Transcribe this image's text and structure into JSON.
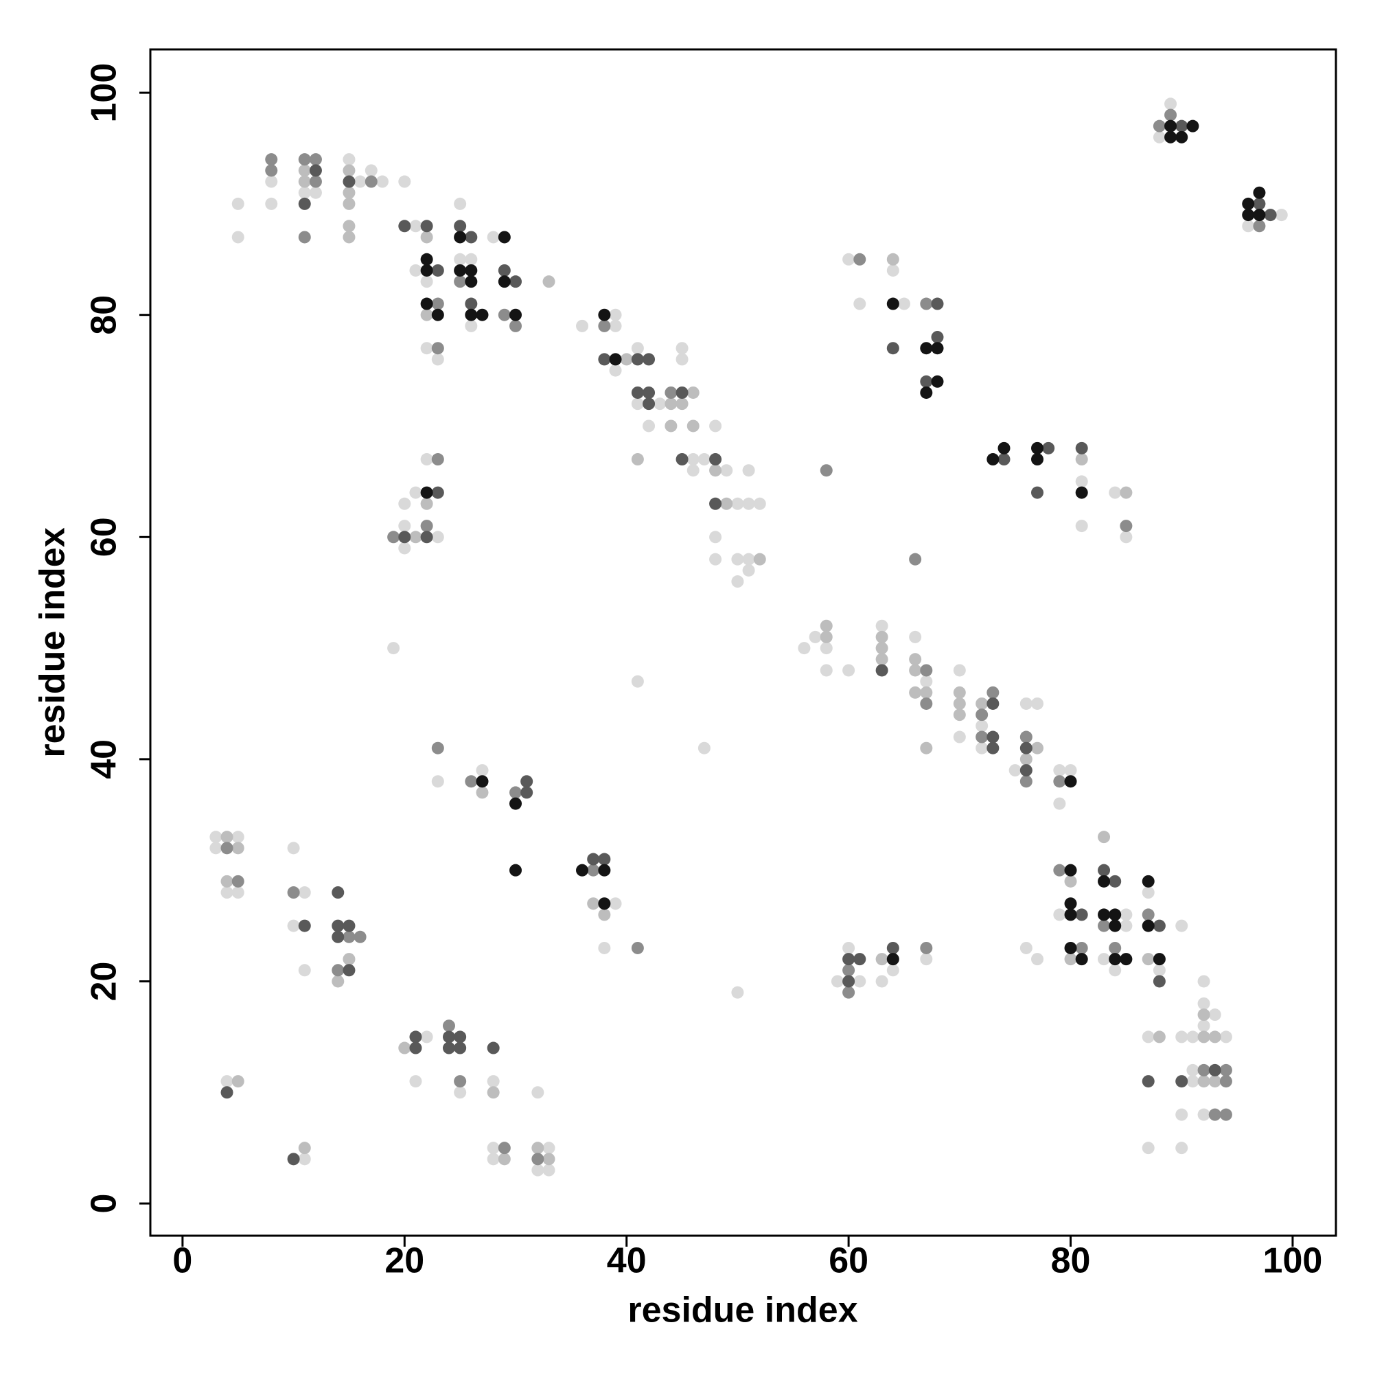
{
  "chart_data": {
    "type": "scatter",
    "xlabel": "residue index",
    "ylabel": "residue index",
    "xlim": [
      -2.9,
      103.9
    ],
    "ylim": [
      -2.9,
      103.9
    ],
    "xticks": [
      0,
      20,
      40,
      60,
      80,
      100
    ],
    "yticks": [
      0,
      20,
      40,
      60,
      80,
      100
    ],
    "series": [
      {
        "color": "#d9d9d9",
        "x": [
          5,
          5,
          8,
          8,
          11,
          12,
          15,
          16,
          17,
          18,
          20,
          21,
          21,
          22,
          22,
          23,
          25,
          25,
          26,
          26,
          28,
          36,
          39,
          39,
          39,
          41,
          41,
          43,
          45,
          45,
          42,
          46,
          47,
          46,
          48,
          49,
          50,
          51,
          52,
          51,
          48,
          48,
          50,
          51,
          51,
          50,
          23,
          20,
          20,
          20,
          21,
          22,
          19,
          89,
          88,
          99,
          96,
          60,
          64,
          61,
          65,
          81,
          81,
          84,
          85,
          56,
          57,
          58,
          58,
          60,
          63,
          66,
          67,
          70,
          70,
          72,
          72,
          75,
          76,
          77,
          79,
          80,
          79,
          79,
          76,
          77,
          85,
          85,
          83,
          84,
          87,
          90,
          88,
          92,
          92,
          93,
          92,
          87,
          90,
          91,
          94,
          91,
          91,
          90,
          92,
          87,
          90,
          59,
          60,
          61,
          63,
          64,
          67,
          50,
          3,
          5,
          3,
          4,
          5,
          10,
          11,
          10,
          11,
          4,
          11,
          22,
          21,
          25,
          28,
          28,
          28,
          32,
          33,
          32,
          33,
          23,
          27,
          41,
          47,
          39,
          38
        ],
        "values": [
          90,
          87,
          92,
          90,
          91,
          91,
          94,
          92,
          93,
          92,
          92,
          88,
          84,
          83,
          77,
          76,
          90,
          85,
          85,
          79,
          87,
          79,
          80,
          79,
          75,
          77,
          72,
          72,
          77,
          76,
          70,
          67,
          67,
          66,
          70,
          66,
          63,
          63,
          63,
          66,
          60,
          58,
          58,
          58,
          57,
          56,
          60,
          59,
          61,
          63,
          64,
          67,
          50,
          99,
          96,
          89,
          88,
          85,
          84,
          81,
          81,
          65,
          61,
          64,
          60,
          50,
          51,
          50,
          48,
          48,
          52,
          51,
          47,
          48,
          42,
          43,
          41,
          39,
          45,
          45,
          39,
          39,
          36,
          26,
          23,
          22,
          26,
          25,
          22,
          21,
          28,
          25,
          21,
          20,
          18,
          17,
          16,
          15,
          15,
          15,
          15,
          12,
          11,
          8,
          8,
          5,
          5,
          20,
          23,
          20,
          20,
          21,
          22,
          19,
          33,
          33,
          32,
          28,
          28,
          32,
          28,
          25,
          21,
          11,
          4,
          15,
          11,
          10,
          11,
          5,
          4,
          10,
          5,
          3,
          3,
          38,
          39,
          47,
          41,
          27,
          23
        ]
      },
      {
        "color": "#bdbdbd",
        "x": [
          11,
          11,
          15,
          15,
          15,
          15,
          15,
          22,
          22,
          33,
          40,
          44,
          45,
          46,
          44,
          46,
          41,
          48,
          49,
          52,
          21,
          22,
          64,
          81,
          85,
          58,
          58,
          63,
          63,
          63,
          66,
          66,
          66,
          67,
          67,
          70,
          70,
          70,
          72,
          76,
          77,
          83,
          80,
          80,
          87,
          92,
          88,
          92,
          93,
          92,
          93,
          63,
          4,
          5,
          4,
          15,
          14,
          5,
          11,
          20,
          28,
          29,
          32,
          33,
          27,
          37,
          38
        ],
        "values": [
          93,
          92,
          93,
          91,
          90,
          88,
          87,
          87,
          80,
          83,
          76,
          72,
          72,
          73,
          70,
          70,
          67,
          66,
          63,
          58,
          60,
          63,
          85,
          67,
          64,
          52,
          51,
          51,
          50,
          49,
          49,
          48,
          46,
          46,
          41,
          46,
          45,
          44,
          45,
          40,
          41,
          33,
          29,
          22,
          22,
          17,
          15,
          15,
          15,
          11,
          11,
          22,
          33,
          32,
          29,
          22,
          20,
          11,
          5,
          14,
          10,
          4,
          5,
          4,
          37,
          27,
          26
        ]
      },
      {
        "color": "#8c8c8c",
        "x": [
          8,
          8,
          11,
          11,
          12,
          12,
          17,
          23,
          23,
          25,
          29,
          30,
          38,
          44,
          19,
          22,
          23,
          88,
          89,
          97,
          61,
          67,
          85,
          58,
          66,
          67,
          67,
          72,
          72,
          73,
          76,
          76,
          79,
          79,
          81,
          83,
          84,
          87,
          92,
          94,
          94,
          93,
          94,
          60,
          60,
          67,
          4,
          5,
          10,
          15,
          16,
          14,
          24,
          25,
          29,
          32,
          23,
          26,
          30,
          37,
          41
        ],
        "values": [
          94,
          93,
          94,
          87,
          94,
          92,
          92,
          81,
          77,
          83,
          80,
          79,
          79,
          73,
          60,
          61,
          67,
          97,
          98,
          88,
          85,
          81,
          61,
          66,
          58,
          48,
          45,
          44,
          42,
          46,
          42,
          38,
          38,
          30,
          23,
          25,
          23,
          26,
          12,
          12,
          11,
          8,
          8,
          21,
          19,
          23,
          32,
          29,
          28,
          24,
          24,
          21,
          16,
          11,
          5,
          4,
          41,
          38,
          37,
          30,
          23
        ]
      },
      {
        "color": "#595959",
        "x": [
          11,
          12,
          15,
          20,
          22,
          23,
          25,
          26,
          26,
          29,
          30,
          38,
          41,
          42,
          41,
          42,
          42,
          45,
          45,
          48,
          48,
          20,
          22,
          23,
          90,
          97,
          98,
          68,
          64,
          68,
          67,
          74,
          78,
          77,
          81,
          63,
          73,
          73,
          73,
          76,
          76,
          81,
          83,
          84,
          88,
          88,
          87,
          90,
          93,
          60,
          61,
          60,
          64,
          11,
          14,
          14,
          15,
          14,
          15,
          4,
          10,
          21,
          21,
          24,
          25,
          24,
          25,
          28,
          31,
          31,
          37,
          38
        ],
        "values": [
          90,
          93,
          92,
          88,
          88,
          84,
          88,
          87,
          81,
          84,
          83,
          76,
          76,
          76,
          73,
          73,
          72,
          73,
          67,
          67,
          63,
          60,
          60,
          64,
          97,
          90,
          89,
          81,
          77,
          78,
          74,
          67,
          68,
          64,
          68,
          48,
          45,
          42,
          41,
          41,
          39,
          26,
          30,
          29,
          25,
          20,
          11,
          11,
          12,
          22,
          22,
          20,
          23,
          25,
          28,
          25,
          25,
          24,
          21,
          10,
          4,
          15,
          14,
          15,
          15,
          14,
          14,
          14,
          38,
          37,
          31,
          31
        ]
      },
      {
        "color": "#141414",
        "x": [
          22,
          22,
          22,
          23,
          25,
          25,
          26,
          26,
          26,
          27,
          29,
          29,
          30,
          38,
          39,
          22,
          89,
          91,
          89,
          90,
          97,
          96,
          96,
          97,
          64,
          67,
          68,
          68,
          67,
          73,
          74,
          77,
          77,
          81,
          80,
          80,
          80,
          80,
          80,
          81,
          83,
          83,
          84,
          84,
          84,
          85,
          87,
          87,
          88,
          64,
          27,
          30,
          30,
          36,
          38,
          38
        ],
        "values": [
          85,
          84,
          81,
          80,
          87,
          84,
          84,
          83,
          80,
          80,
          87,
          83,
          80,
          80,
          76,
          64,
          97,
          97,
          96,
          96,
          91,
          90,
          89,
          89,
          81,
          77,
          77,
          74,
          73,
          67,
          68,
          68,
          67,
          64,
          38,
          30,
          27,
          26,
          23,
          22,
          29,
          26,
          26,
          25,
          22,
          22,
          29,
          25,
          22,
          22,
          38,
          30,
          36,
          30,
          30,
          27
        ]
      }
    ]
  }
}
